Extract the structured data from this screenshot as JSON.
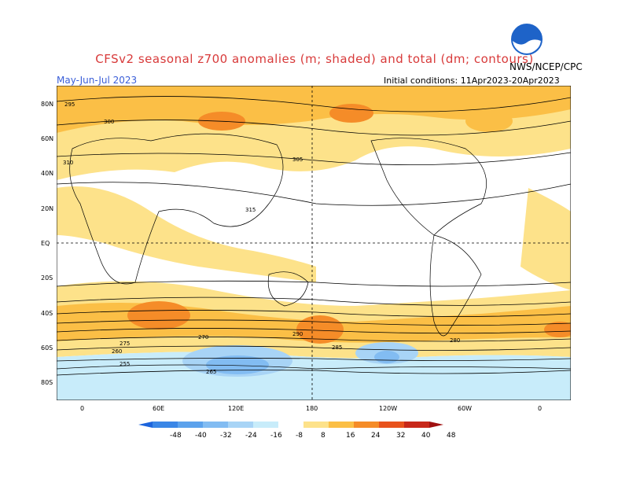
{
  "header": {
    "title": "CFSv2 seasonal z700 anomalies (m; shaded) and total (dm; contours)",
    "agency": "NWS/NCEP/CPC",
    "season": "May-Jun-Jul 2023",
    "initial_conditions": "Initial conditions: 11Apr2023-20Apr2023",
    "logo_icon": "noaa-logo-icon"
  },
  "map": {
    "lat_labels": [
      "80N",
      "60N",
      "40N",
      "20N",
      "EQ",
      "20S",
      "40S",
      "60S",
      "80S"
    ],
    "lon_labels": [
      "0",
      "60E",
      "120E",
      "180",
      "120W",
      "60W",
      "0"
    ],
    "contour_labels": [
      "295",
      "300",
      "305",
      "310",
      "315",
      "290",
      "285",
      "280",
      "275",
      "270",
      "265",
      "260",
      "255"
    ]
  },
  "colorbar": {
    "labels": [
      "-48",
      "-40",
      "-32",
      "-24",
      "-16",
      "-8",
      "8",
      "16",
      "24",
      "32",
      "40",
      "48"
    ],
    "colors": [
      "#1c64dc",
      "#3a86e6",
      "#5ca2ec",
      "#82bcf2",
      "#a8d4f6",
      "#c8ecfa",
      "#ffffff",
      "#fde28a",
      "#fbbf46",
      "#f58c28",
      "#e8521c",
      "#c8281a",
      "#a01010"
    ]
  }
}
